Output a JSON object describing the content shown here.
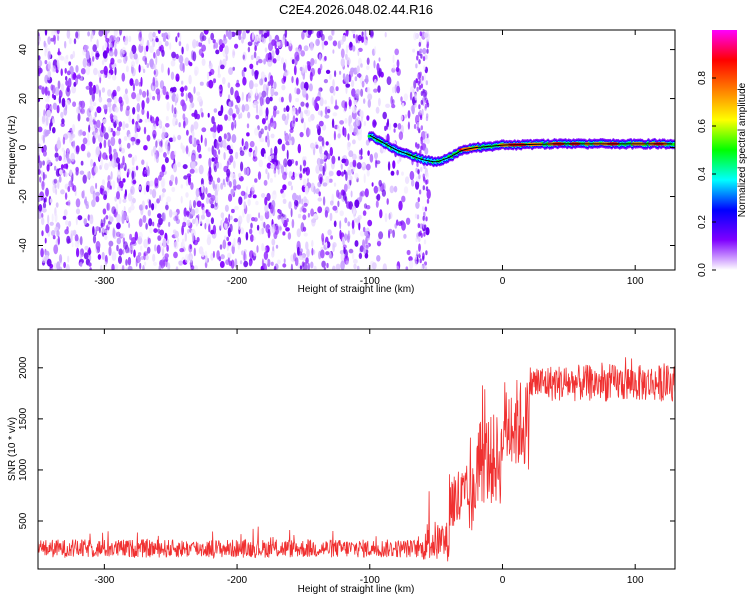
{
  "figure": {
    "title": "C2E4.2026.048.02.44.R16"
  },
  "chart_data": [
    {
      "type": "heatmap",
      "name": "spectrogram",
      "xlabel": "Height of straight line (km)",
      "ylabel": "Frequency (Hz)",
      "xlim": [
        -350,
        130
      ],
      "ylim": [
        -50,
        48
      ],
      "xticks": [
        -300,
        -200,
        -100,
        0,
        100
      ],
      "yticks": [
        -40,
        -20,
        0,
        20,
        40
      ],
      "noise_region_x": [
        -350,
        -55
      ],
      "tone_track": [
        {
          "x": -100,
          "y": 5
        },
        {
          "x": -90,
          "y": 2
        },
        {
          "x": -80,
          "y": -1
        },
        {
          "x": -70,
          "y": -3
        },
        {
          "x": -60,
          "y": -5
        },
        {
          "x": -50,
          "y": -6
        },
        {
          "x": -40,
          "y": -4
        },
        {
          "x": -30,
          "y": -1
        },
        {
          "x": -20,
          "y": 0
        },
        {
          "x": 0,
          "y": 1
        },
        {
          "x": 40,
          "y": 1.5
        },
        {
          "x": 130,
          "y": 1.5
        }
      ],
      "colorbar": {
        "label": "Normalized spectral amplitude",
        "ticks": [
          "0.0",
          "0.2",
          "0.4",
          "0.6",
          "0.8"
        ],
        "range": [
          0,
          1
        ],
        "colors": [
          "#ffffff",
          "#e8d8ff",
          "#7f00ff",
          "#0000ff",
          "#00ffff",
          "#00ff00",
          "#ffff00",
          "#ff7f00",
          "#ff0000",
          "#ff00ff"
        ]
      },
      "trace_color": "#000000"
    },
    {
      "type": "line",
      "name": "snr",
      "xlabel": "Height of straight line (km)",
      "ylabel": "SNR (10 * v/v)",
      "xlim": [
        -350,
        130
      ],
      "ylim": [
        30,
        2380
      ],
      "xticks": [
        -300,
        -200,
        -100,
        0,
        100
      ],
      "yticks": [
        500,
        1000,
        1500,
        2000
      ],
      "color": "#f03030",
      "segments": [
        {
          "x": [
            -350,
            -60
          ],
          "mean": 230,
          "noise": 90
        },
        {
          "x": [
            -60,
            -40
          ],
          "mean": 300,
          "noise": 200
        },
        {
          "x": [
            -40,
            -20
          ],
          "mean": 700,
          "noise": 350
        },
        {
          "x": [
            -20,
            0
          ],
          "mean": 1100,
          "noise": 450
        },
        {
          "x": [
            0,
            20
          ],
          "mean": 1450,
          "noise": 450
        },
        {
          "x": [
            20,
            130
          ],
          "mean": 1850,
          "noise": 180
        }
      ]
    }
  ]
}
